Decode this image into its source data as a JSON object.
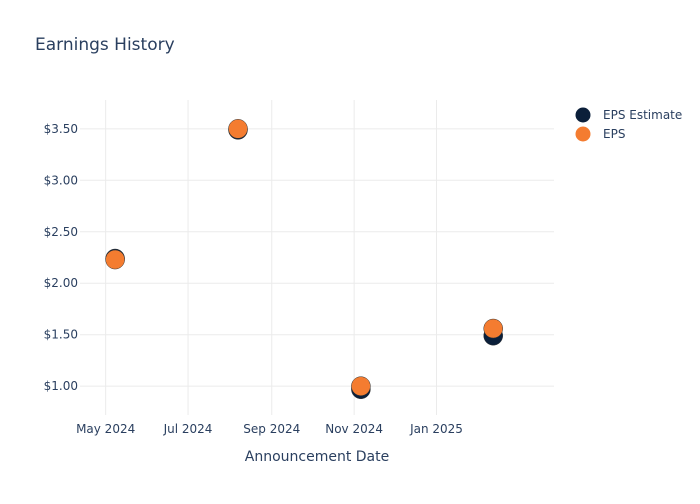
{
  "chart_data": {
    "type": "scatter",
    "title": "Earnings History",
    "xlabel": "Announcement Date",
    "ylabel": "",
    "x_axis_type": "date",
    "xlim": [
      "2024-04-12",
      "2025-03-29"
    ],
    "ylim": [
      0.72,
      3.78
    ],
    "x_ticks": [
      {
        "value": "2024-05-01",
        "label": "May 2024"
      },
      {
        "value": "2024-07-01",
        "label": "Jul 2024"
      },
      {
        "value": "2024-09-01",
        "label": "Sep 2024"
      },
      {
        "value": "2024-11-01",
        "label": "Nov 2024"
      },
      {
        "value": "2025-01-01",
        "label": "Jan 2025"
      }
    ],
    "y_ticks": [
      {
        "value": 1.0,
        "label": "$1.00"
      },
      {
        "value": 1.5,
        "label": "$1.50"
      },
      {
        "value": 2.0,
        "label": "$2.00"
      },
      {
        "value": 2.5,
        "label": "$2.50"
      },
      {
        "value": 3.0,
        "label": "$3.00"
      },
      {
        "value": 3.5,
        "label": "$3.50"
      }
    ],
    "grid": true,
    "legend_position": "top-right",
    "series": [
      {
        "name": "EPS Estimate",
        "color": "#0b1f3a",
        "points": [
          {
            "x": "2024-05-08",
            "y": 2.24
          },
          {
            "x": "2024-08-07",
            "y": 3.49
          },
          {
            "x": "2024-11-06",
            "y": 0.97
          },
          {
            "x": "2025-02-12",
            "y": 1.49
          }
        ]
      },
      {
        "name": "EPS",
        "color": "#f47c30",
        "points": [
          {
            "x": "2024-05-08",
            "y": 2.23
          },
          {
            "x": "2024-08-07",
            "y": 3.5
          },
          {
            "x": "2024-11-06",
            "y": 1.0
          },
          {
            "x": "2025-02-12",
            "y": 1.56
          }
        ]
      }
    ]
  }
}
